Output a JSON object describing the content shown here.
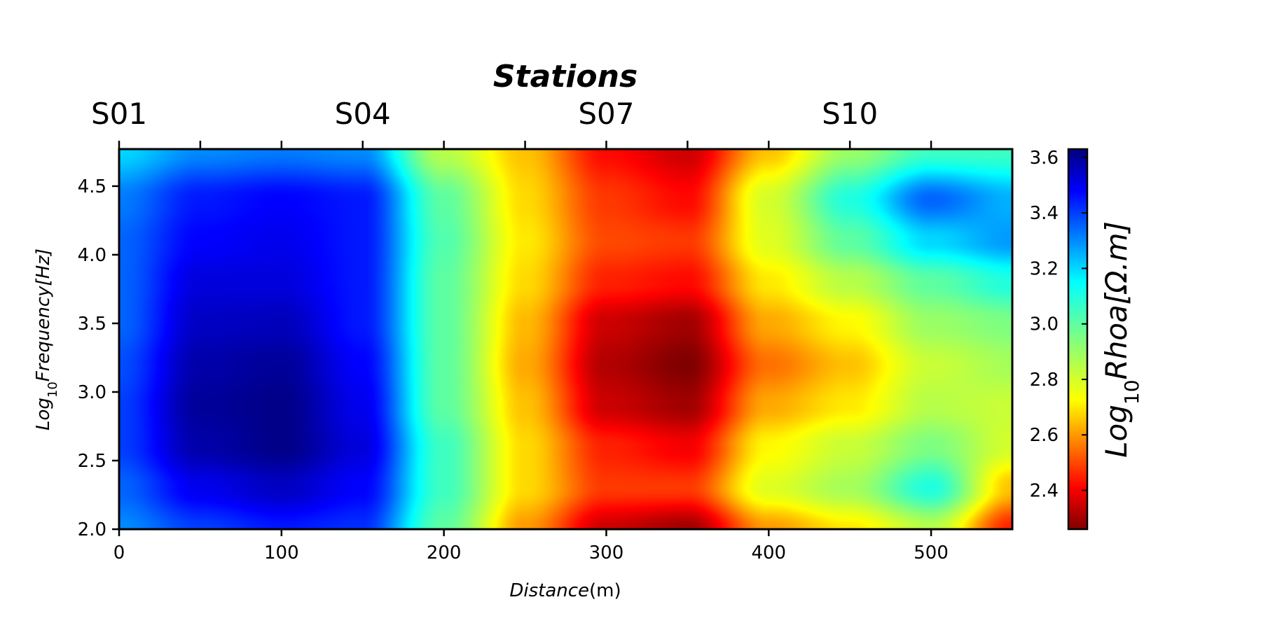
{
  "chart_data": {
    "type": "heatmap",
    "title": "Stations",
    "xlabel_base": "Distance",
    "xlabel_unit": "(m)",
    "ylabel_prefix": "Log",
    "ylabel_sub": "10",
    "ylabel_rest": "Frequency[Hz]",
    "colorbar_label_prefix": "Log",
    "colorbar_label_sub": "10",
    "colorbar_label_rest": "Rhoa[Ω.m]",
    "colormap": "jet_reversed",
    "xlim": [
      0,
      550
    ],
    "ylim": [
      2.0,
      4.77
    ],
    "clim": [
      2.26,
      3.63
    ],
    "x_ticks": [
      0,
      100,
      200,
      300,
      400,
      500
    ],
    "x_tick_labels": [
      "0",
      "100",
      "200",
      "300",
      "400",
      "500"
    ],
    "y_ticks": [
      2.0,
      2.5,
      3.0,
      3.5,
      4.0,
      4.5
    ],
    "y_tick_labels": [
      "2.0",
      "2.5",
      "3.0",
      "3.5",
      "4.0",
      "4.5"
    ],
    "colorbar_ticks": [
      2.4,
      2.6,
      2.8,
      3.0,
      3.2,
      3.4,
      3.6
    ],
    "colorbar_tick_labels": [
      "2.4",
      "2.6",
      "2.8",
      "3.0",
      "3.2",
      "3.4",
      "3.6"
    ],
    "station_tick_positions": [
      0,
      50,
      100,
      150,
      200,
      250,
      300,
      350,
      400,
      450,
      500
    ],
    "station_label_positions": [
      0,
      150,
      300,
      450
    ],
    "station_labels": [
      "S01",
      "S04",
      "S07",
      "S10"
    ],
    "grid_x": [
      0,
      50,
      100,
      150,
      200,
      250,
      300,
      350,
      400,
      450,
      500,
      550
    ],
    "grid_y": [
      2.0,
      2.3,
      2.6,
      2.9,
      3.2,
      3.5,
      3.8,
      4.1,
      4.4,
      4.77
    ],
    "values": [
      [
        3.3,
        3.4,
        3.45,
        3.42,
        3.0,
        2.6,
        2.35,
        2.3,
        2.6,
        2.7,
        2.85,
        2.45
      ],
      [
        3.35,
        3.5,
        3.55,
        3.48,
        3.05,
        2.68,
        2.48,
        2.48,
        2.78,
        2.88,
        3.1,
        2.65
      ],
      [
        3.4,
        3.58,
        3.62,
        3.52,
        3.05,
        2.68,
        2.45,
        2.4,
        2.72,
        2.82,
        2.95,
        2.8
      ],
      [
        3.4,
        3.6,
        3.62,
        3.5,
        3.0,
        2.65,
        2.35,
        2.3,
        2.62,
        2.7,
        2.85,
        2.82
      ],
      [
        3.38,
        3.58,
        3.6,
        3.48,
        3.0,
        2.62,
        2.32,
        2.26,
        2.55,
        2.65,
        2.82,
        2.88
      ],
      [
        3.35,
        3.55,
        3.56,
        3.45,
        3.0,
        2.64,
        2.35,
        2.3,
        2.62,
        2.72,
        2.9,
        2.95
      ],
      [
        3.35,
        3.52,
        3.52,
        3.45,
        3.0,
        2.68,
        2.45,
        2.42,
        2.7,
        2.85,
        3.0,
        3.1
      ],
      [
        3.35,
        3.48,
        3.5,
        3.45,
        3.02,
        2.7,
        2.5,
        2.48,
        2.78,
        3.0,
        3.2,
        3.28
      ],
      [
        3.32,
        3.45,
        3.48,
        3.45,
        3.0,
        2.68,
        2.48,
        2.42,
        2.8,
        3.1,
        3.35,
        3.25
      ],
      [
        3.2,
        3.3,
        3.32,
        3.3,
        2.85,
        2.65,
        2.42,
        2.35,
        2.65,
        2.9,
        3.05,
        3.05
      ]
    ]
  }
}
